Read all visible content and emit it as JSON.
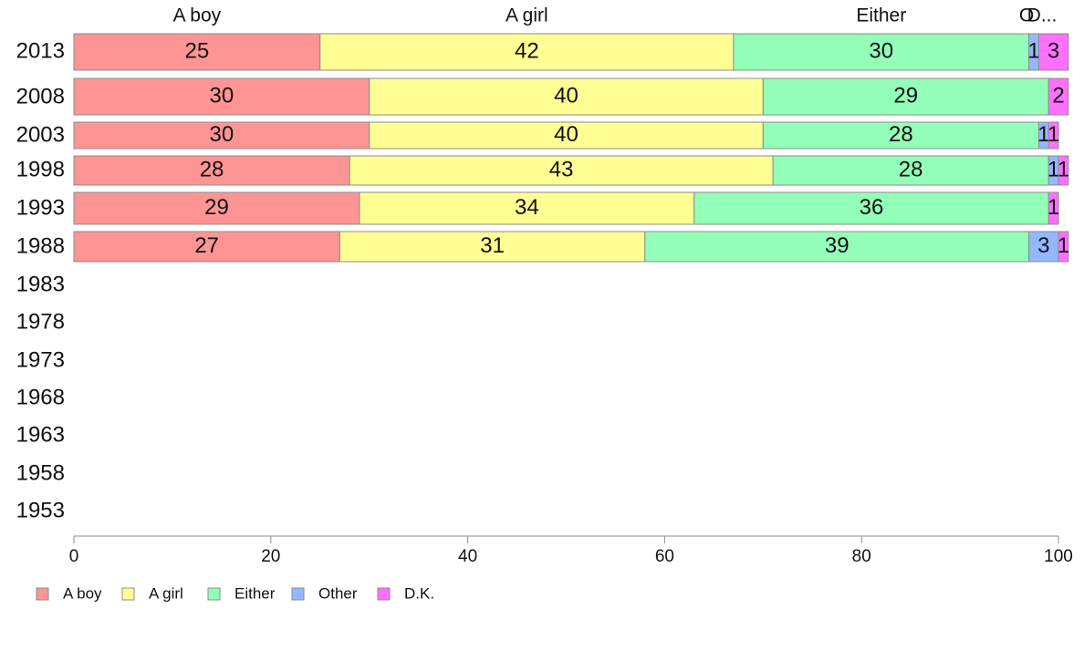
{
  "chart_data": {
    "type": "bar",
    "orientation": "horizontal",
    "stacked": true,
    "categories": [
      "2013",
      "2008",
      "2003",
      "1998",
      "1993",
      "1988",
      "1983",
      "1978",
      "1973",
      "1968",
      "1963",
      "1958",
      "1953"
    ],
    "series": [
      {
        "name": "A boy",
        "color": "#ff9494",
        "values": [
          25,
          30,
          30,
          28,
          29,
          27,
          null,
          null,
          null,
          null,
          null,
          null,
          null
        ]
      },
      {
        "name": "A girl",
        "color": "#ffff94",
        "values": [
          42,
          40,
          40,
          43,
          34,
          31,
          null,
          null,
          null,
          null,
          null,
          null,
          null
        ]
      },
      {
        "name": "Either",
        "color": "#94ffb8",
        "values": [
          30,
          29,
          28,
          28,
          36,
          39,
          null,
          null,
          null,
          null,
          null,
          null,
          null
        ]
      },
      {
        "name": "Other",
        "color": "#94b8ff",
        "values": [
          1,
          0,
          1,
          1,
          0,
          3,
          null,
          null,
          null,
          null,
          null,
          null,
          null
        ]
      },
      {
        "name": "D.K.",
        "color": "#ff70ff",
        "values": [
          3,
          2,
          1,
          1,
          1,
          1,
          null,
          null,
          null,
          null,
          null,
          null,
          null
        ]
      }
    ],
    "column_headers": [
      "A boy",
      "A girl",
      "Either",
      "O",
      "D..."
    ],
    "xlim": [
      0,
      100
    ],
    "xticks": [
      0,
      20,
      40,
      60,
      80,
      100
    ],
    "title": "",
    "xlabel": "",
    "ylabel": "",
    "grid": false,
    "legend": "bottom-left"
  }
}
